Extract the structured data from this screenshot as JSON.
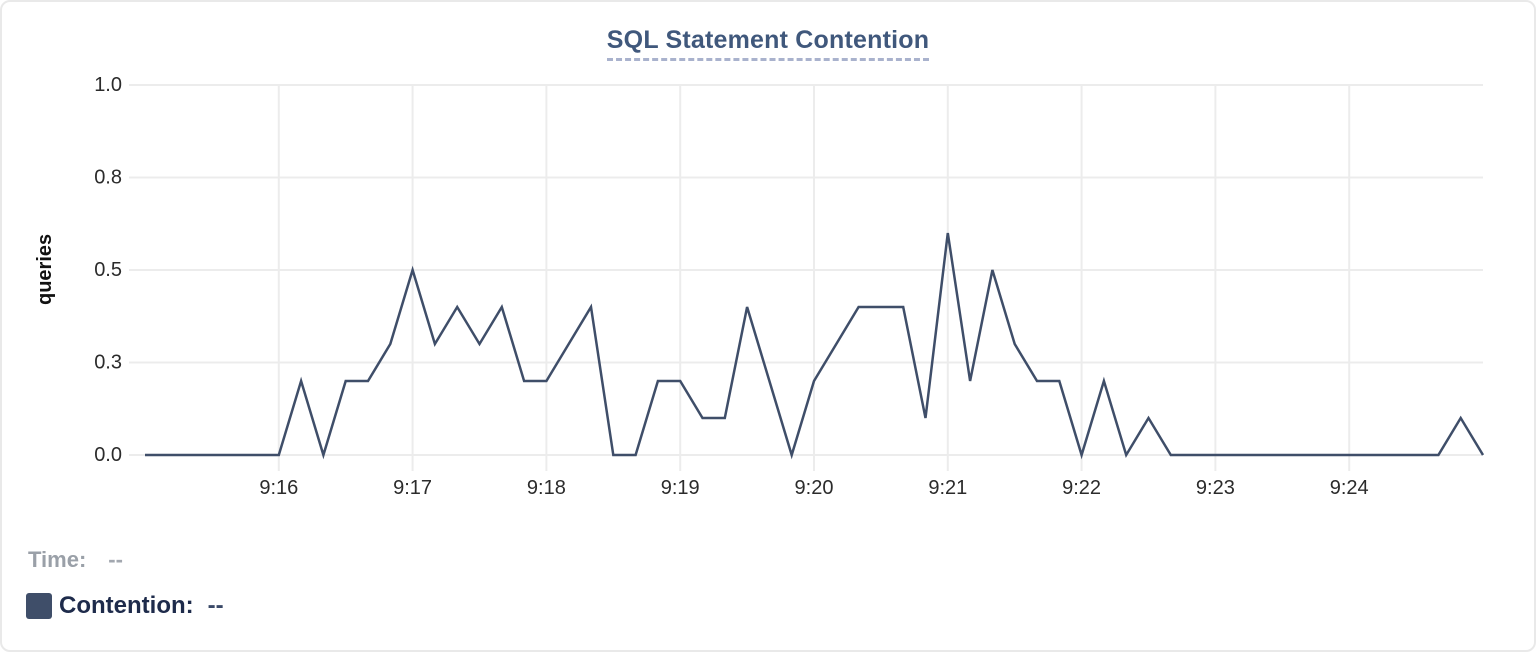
{
  "chart": {
    "title": "SQL Statement Contention",
    "y_axis_title": "queries"
  },
  "tooltip": {
    "time_label": "Time:",
    "time_value": "--",
    "contention_label": "Contention:",
    "contention_value": "--"
  },
  "colors": {
    "line": "#3f4e69",
    "swatch": "#3f4e69",
    "title": "#40587c",
    "title_underline": "#a9b2cd",
    "grid": "#ececec",
    "tick_label": "#2b2b2b",
    "time_label": "#9aa0a8",
    "contention_label": "#1e2b4b"
  },
  "chart_data": {
    "type": "line",
    "title": "SQL Statement Contention",
    "ylabel": "queries",
    "xlabel": "",
    "grid": true,
    "legend_position": "bottom-left",
    "ylim": [
      0,
      1.0
    ],
    "y_ticks": [
      {
        "value": 0,
        "label": "0.0"
      },
      {
        "value": 0.25,
        "label": "0.3"
      },
      {
        "value": 0.5,
        "label": "0.5"
      },
      {
        "value": 0.75,
        "label": "0.8"
      },
      {
        "value": 1,
        "label": "1.0"
      }
    ],
    "x_range": [
      "9:15:00",
      "9:25:00"
    ],
    "x_ticks": [
      "9:16",
      "9:17",
      "9:18",
      "9:19",
      "9:20",
      "9:21",
      "9:22",
      "9:23",
      "9:24"
    ],
    "series": [
      {
        "name": "Contention",
        "color": "#3f4e69",
        "points": [
          [
            "9:15:00",
            0
          ],
          [
            "9:15:10",
            0
          ],
          [
            "9:15:20",
            0
          ],
          [
            "9:15:30",
            0
          ],
          [
            "9:15:40",
            0
          ],
          [
            "9:15:50",
            0
          ],
          [
            "9:16:00",
            0
          ],
          [
            "9:16:10",
            0.2
          ],
          [
            "9:16:20",
            0
          ],
          [
            "9:16:30",
            0.2
          ],
          [
            "9:16:40",
            0.2
          ],
          [
            "9:16:50",
            0.3
          ],
          [
            "9:17:00",
            0.5
          ],
          [
            "9:17:10",
            0.3
          ],
          [
            "9:17:20",
            0.4
          ],
          [
            "9:17:30",
            0.3
          ],
          [
            "9:17:40",
            0.4
          ],
          [
            "9:17:50",
            0.2
          ],
          [
            "9:18:00",
            0.2
          ],
          [
            "9:18:10",
            0.3
          ],
          [
            "9:18:20",
            0.4
          ],
          [
            "9:18:30",
            0
          ],
          [
            "9:18:40",
            0
          ],
          [
            "9:18:50",
            0.2
          ],
          [
            "9:19:00",
            0.2
          ],
          [
            "9:19:10",
            0.1
          ],
          [
            "9:19:20",
            0.1
          ],
          [
            "9:19:30",
            0.4
          ],
          [
            "9:19:40",
            0.2
          ],
          [
            "9:19:50",
            0
          ],
          [
            "9:20:00",
            0.2
          ],
          [
            "9:20:10",
            0.3
          ],
          [
            "9:20:20",
            0.4
          ],
          [
            "9:20:30",
            0.4
          ],
          [
            "9:20:40",
            0.4
          ],
          [
            "9:20:50",
            0.1
          ],
          [
            "9:21:00",
            0.6
          ],
          [
            "9:21:10",
            0.2
          ],
          [
            "9:21:20",
            0.5
          ],
          [
            "9:21:30",
            0.3
          ],
          [
            "9:21:40",
            0.2
          ],
          [
            "9:21:50",
            0.2
          ],
          [
            "9:22:00",
            0
          ],
          [
            "9:22:10",
            0.2
          ],
          [
            "9:22:20",
            0
          ],
          [
            "9:22:30",
            0.1
          ],
          [
            "9:22:40",
            0
          ],
          [
            "9:22:50",
            0
          ],
          [
            "9:23:00",
            0
          ],
          [
            "9:23:10",
            0
          ],
          [
            "9:23:20",
            0
          ],
          [
            "9:23:30",
            0
          ],
          [
            "9:23:40",
            0
          ],
          [
            "9:23:50",
            0
          ],
          [
            "9:24:00",
            0
          ],
          [
            "9:24:10",
            0
          ],
          [
            "9:24:20",
            0
          ],
          [
            "9:24:30",
            0
          ],
          [
            "9:24:40",
            0
          ],
          [
            "9:24:50",
            0.1
          ],
          [
            "9:25:00",
            0
          ]
        ]
      }
    ]
  }
}
